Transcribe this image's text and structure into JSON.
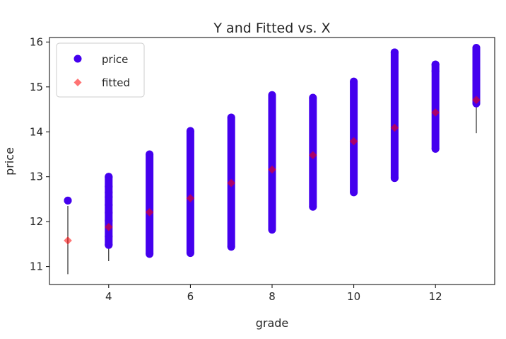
{
  "chart_data": {
    "type": "scatter",
    "title": "Y and Fitted vs. X",
    "xlabel": "grade",
    "ylabel": "price",
    "xlim": [
      2.55,
      13.45
    ],
    "ylim": [
      10.6,
      16.1
    ],
    "xticks": [
      4,
      6,
      8,
      10,
      12
    ],
    "yticks": [
      11,
      12,
      13,
      14,
      15,
      16
    ],
    "grid": false,
    "legend": "upper left",
    "series": [
      {
        "name": "price",
        "color": "#4400ee",
        "marker": "circle",
        "ranges": [
          {
            "x": 3,
            "min": 12.47,
            "max": 12.47
          },
          {
            "x": 4,
            "min": 11.48,
            "max": 13.0
          },
          {
            "x": 5,
            "min": 11.28,
            "max": 13.5
          },
          {
            "x": 6,
            "min": 11.3,
            "max": 14.02
          },
          {
            "x": 7,
            "min": 11.44,
            "max": 14.32
          },
          {
            "x": 8,
            "min": 11.82,
            "max": 14.82
          },
          {
            "x": 9,
            "min": 12.33,
            "max": 14.76
          },
          {
            "x": 10,
            "min": 12.65,
            "max": 15.12
          },
          {
            "x": 11,
            "min": 12.97,
            "max": 15.77
          },
          {
            "x": 12,
            "min": 13.62,
            "max": 15.5
          },
          {
            "x": 13,
            "min": 14.63,
            "max": 15.87
          }
        ],
        "outliers": [
          {
            "x": 4,
            "y": 11.48
          },
          {
            "x": 4,
            "y": 11.67
          },
          {
            "x": 4,
            "y": 12.02
          },
          {
            "x": 4,
            "y": 12.2
          },
          {
            "x": 4,
            "y": 12.37
          },
          {
            "x": 4,
            "y": 12.55
          },
          {
            "x": 4,
            "y": 12.65
          },
          {
            "x": 4,
            "y": 12.78
          },
          {
            "x": 4,
            "y": 13.0
          },
          {
            "x": 11,
            "y": 12.97
          },
          {
            "x": 11,
            "y": 15.77
          },
          {
            "x": 12,
            "y": 15.35
          },
          {
            "x": 12,
            "y": 15.5
          },
          {
            "x": 13,
            "y": 14.65
          },
          {
            "x": 13,
            "y": 14.9
          },
          {
            "x": 13,
            "y": 15.15
          },
          {
            "x": 13,
            "y": 15.42
          },
          {
            "x": 13,
            "y": 15.58
          },
          {
            "x": 13,
            "y": 15.72
          },
          {
            "x": 13,
            "y": 15.87
          }
        ]
      },
      {
        "name": "fitted",
        "color": "#ff0000",
        "marker": "diamond",
        "points": [
          {
            "x": 3,
            "y": 11.58
          },
          {
            "x": 4,
            "y": 11.88
          },
          {
            "x": 5,
            "y": 12.21
          },
          {
            "x": 6,
            "y": 12.52
          },
          {
            "x": 7,
            "y": 12.86
          },
          {
            "x": 8,
            "y": 13.16
          },
          {
            "x": 9,
            "y": 13.48
          },
          {
            "x": 10,
            "y": 13.79
          },
          {
            "x": 11,
            "y": 14.09
          },
          {
            "x": 12,
            "y": 14.43
          },
          {
            "x": 13,
            "y": 14.71
          }
        ]
      }
    ],
    "error_bars": [
      {
        "x": 3,
        "low": 10.83,
        "high": 12.35
      },
      {
        "x": 4,
        "low": 11.12,
        "high": 12.62
      },
      {
        "x": 5,
        "low": 11.45,
        "high": 12.97
      },
      {
        "x": 6,
        "low": 11.77,
        "high": 13.28
      },
      {
        "x": 7,
        "low": 12.1,
        "high": 13.6
      },
      {
        "x": 8,
        "low": 12.4,
        "high": 13.9
      },
      {
        "x": 9,
        "low": 12.73,
        "high": 14.23
      },
      {
        "x": 10,
        "low": 13.04,
        "high": 14.54
      },
      {
        "x": 11,
        "low": 13.34,
        "high": 14.84
      },
      {
        "x": 12,
        "low": 13.67,
        "high": 15.18
      },
      {
        "x": 13,
        "low": 13.97,
        "high": 15.46
      }
    ]
  }
}
